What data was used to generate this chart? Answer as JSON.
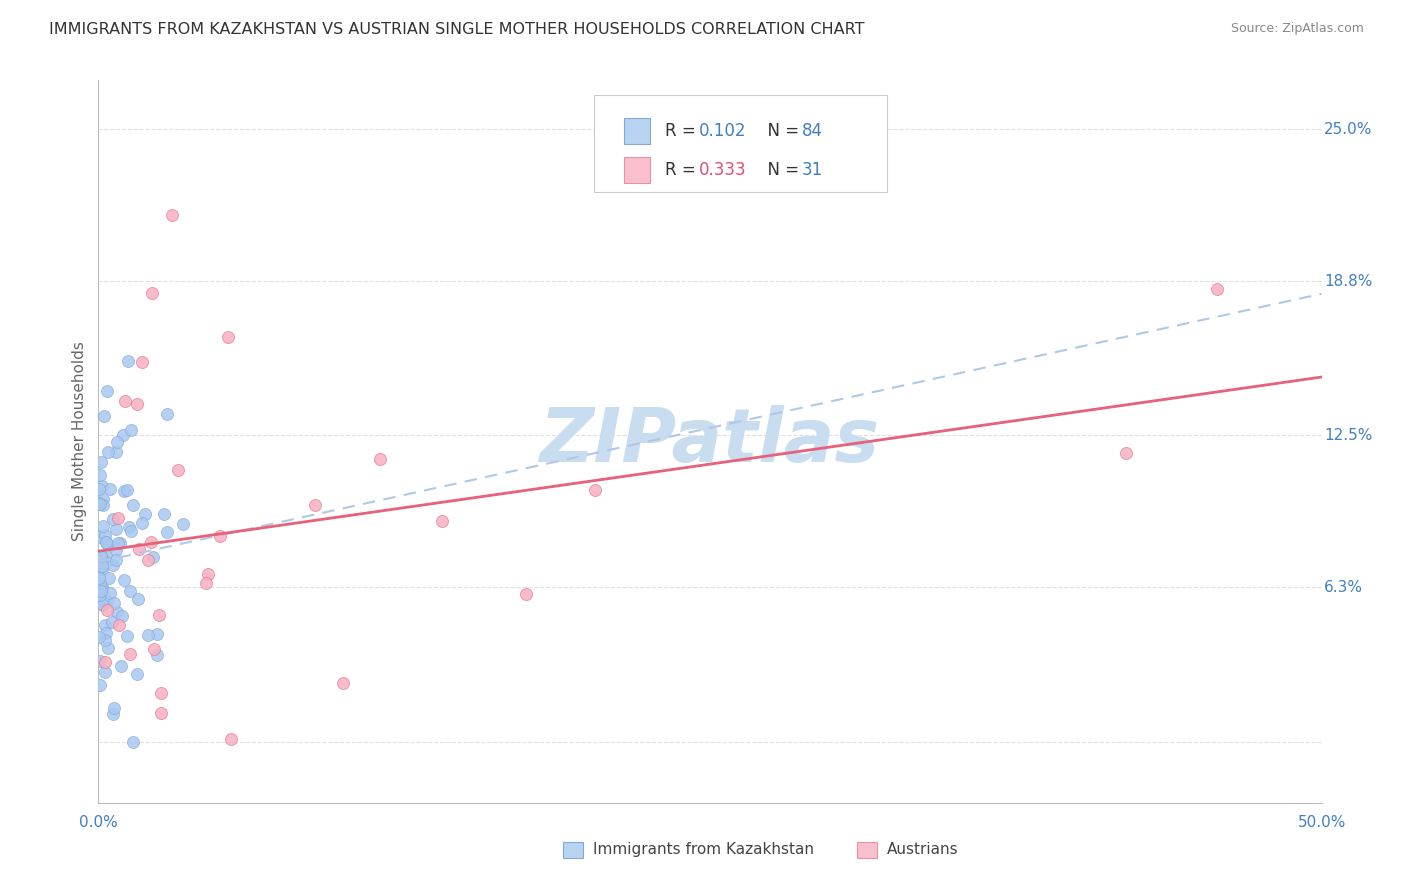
{
  "title": "IMMIGRANTS FROM KAZAKHSTAN VS AUSTRIAN SINGLE MOTHER HOUSEHOLDS CORRELATION CHART",
  "source": "Source: ZipAtlas.com",
  "ylabel": "Single Mother Households",
  "ytick_values": [
    0.0,
    0.063,
    0.125,
    0.188,
    0.25
  ],
  "ytick_labels": [
    "",
    "6.3%",
    "12.5%",
    "18.8%",
    "25.0%"
  ],
  "xlim": [
    0.0,
    0.5
  ],
  "ylim": [
    -0.025,
    0.27
  ],
  "legend_R1": "0.102",
  "legend_N1": "84",
  "legend_R2": "0.333",
  "legend_N2": "31",
  "scatter_blue_color": "#a8c8f0",
  "scatter_blue_edge": "#80a8d8",
  "scatter_pink_color": "#f8b0c0",
  "scatter_pink_edge": "#e07090",
  "line_blue_color": "#b0c8e8",
  "line_pink_color": "#e8607a",
  "legend_blue_face": "#b8d4f0",
  "legend_blue_edge": "#80a8d8",
  "legend_pink_face": "#f8c0cc",
  "legend_pink_edge": "#e890a8",
  "watermark_color": "#c8ddf0",
  "title_color": "#333333",
  "axis_val_color": "#4080c0",
  "grid_color": "#e0e0e0",
  "bottom_legend_blue": "#88b8e8",
  "bottom_legend_pink": "#f080a0"
}
